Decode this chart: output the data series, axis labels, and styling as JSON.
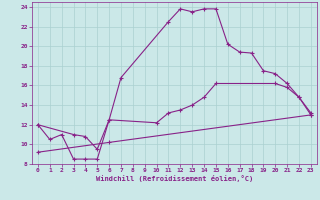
{
  "xlabel": "Windchill (Refroidissement éolien,°C)",
  "background_color": "#cbe8e8",
  "grid_color": "#aad0d0",
  "line_color": "#882288",
  "xlim": [
    -0.5,
    23.5
  ],
  "ylim": [
    8,
    24.5
  ],
  "yticks": [
    8,
    10,
    12,
    14,
    16,
    18,
    20,
    22,
    24
  ],
  "xticks": [
    0,
    1,
    2,
    3,
    4,
    5,
    6,
    7,
    8,
    9,
    10,
    11,
    12,
    13,
    14,
    15,
    16,
    17,
    18,
    19,
    20,
    21,
    22,
    23
  ],
  "line1_x": [
    0,
    1,
    2,
    3,
    4,
    5,
    6,
    7,
    11,
    12,
    13,
    14,
    15,
    16,
    17,
    18,
    19,
    20,
    21,
    22,
    23
  ],
  "line1_y": [
    12,
    10.5,
    11,
    8.5,
    8.5,
    8.5,
    12.5,
    16.8,
    22.5,
    23.8,
    23.5,
    23.8,
    23.8,
    20.2,
    19.4,
    19.3,
    17.5,
    17.2,
    16.2,
    14.8,
    13.0
  ],
  "line2_x": [
    0,
    3,
    4,
    5,
    6,
    10,
    11,
    12,
    13,
    14,
    15,
    20,
    21,
    22,
    23
  ],
  "line2_y": [
    12,
    11,
    10.8,
    9.5,
    12.5,
    12.2,
    13.2,
    13.5,
    14.0,
    14.8,
    16.2,
    16.2,
    15.8,
    14.8,
    13.2
  ],
  "line3_x": [
    0,
    6,
    23
  ],
  "line3_y": [
    9.2,
    10.2,
    13.0
  ]
}
